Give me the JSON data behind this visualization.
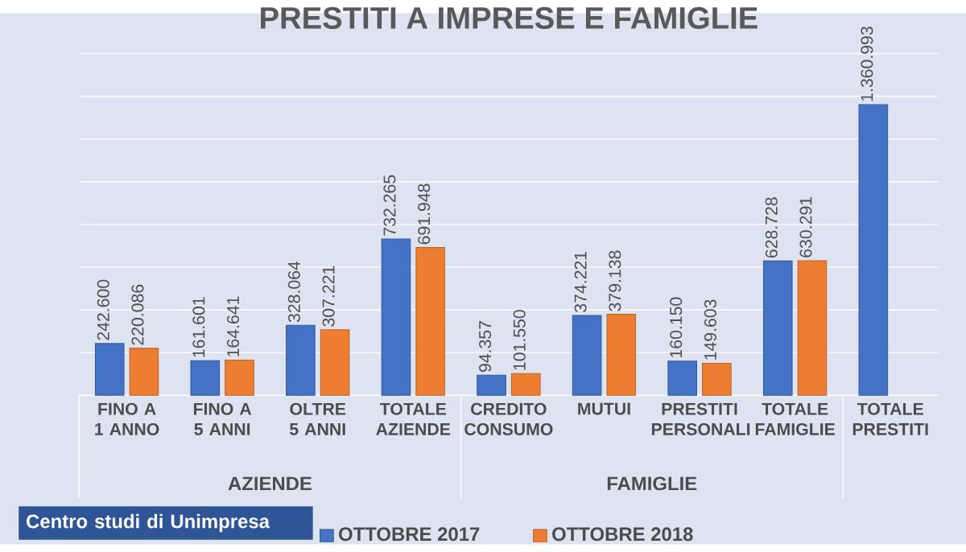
{
  "chart_data": {
    "type": "bar",
    "title": "PRESTITI A IMPRESE E FAMIGLIE",
    "categories": [
      "FINO A 1 ANNO",
      "FINO A 5 ANNI",
      "OLTRE 5 ANNI",
      "TOTALE AZIENDE",
      "CREDITO CONSUMO",
      "MUTUI",
      "PRESTITI PERSONALI",
      "TOTALE FAMIGLIE",
      "TOTALE PRESTITI"
    ],
    "series": [
      {
        "name": "OTTOBRE 2017",
        "color": "#4472c4",
        "values": [
          242600,
          161601,
          328064,
          732265,
          94357,
          374221,
          160150,
          628728,
          1360993
        ],
        "value_labels": [
          "242.600",
          "161.601",
          "328.064",
          "732.265",
          "94.357",
          "374.221",
          "160.150",
          "628.728",
          "1.360.993"
        ]
      },
      {
        "name": "OTTOBRE 2018",
        "color": "#ed7d31",
        "values": [
          220086,
          164641,
          307221,
          691948,
          101550,
          379138,
          149603,
          630291,
          null
        ],
        "value_labels": [
          "220.086",
          "164.641",
          "307.221",
          "691.948",
          "101.550",
          "379.138",
          "149.603",
          "630.291",
          null
        ]
      }
    ],
    "ylim": [
      0,
      1600000
    ],
    "yticks": [
      {
        "value": 0,
        "label": null
      },
      {
        "value": 200000,
        "label": null
      },
      {
        "value": 400000,
        "label": null
      },
      {
        "value": 600000,
        "label": null
      },
      {
        "value": 800000,
        "label": null
      },
      {
        "value": 1000000,
        "label": null
      },
      {
        "value": 1200000,
        "label": null
      },
      {
        "value": 1400000,
        "label": null
      },
      {
        "value": 1600000,
        "label": null
      }
    ],
    "tick_labels": "x",
    "grid": "y",
    "legend": "bottom",
    "annotations": [
      "AZIENDE",
      "FAMIGLIE",
      "Centro studi di Unimpresa"
    ]
  }
}
